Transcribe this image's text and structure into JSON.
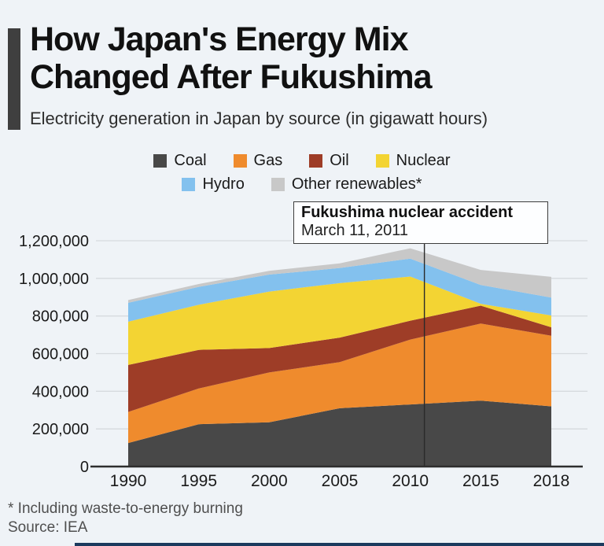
{
  "header": {
    "title_line1": "How Japan's Energy Mix",
    "title_line2": "Changed After Fukushima",
    "subtitle": "Electricity generation in Japan by source (in gigawatt hours)"
  },
  "annotation": {
    "title": "Fukushima nuclear accident",
    "date": "March 11, 2011",
    "year": 2011
  },
  "footer": {
    "footnote": "* Including waste-to-energy burning",
    "source": "Source: IEA"
  },
  "colors": {
    "background": "#eff3f7",
    "accent_bar": "#3f3f3f",
    "grid": "#d6dade",
    "axis": "#2e2e2e",
    "annotation_line": "#2a2a2a",
    "tick_text": "#1a1a1a",
    "bottom_bar": "#1b3a5e"
  },
  "chart_data": {
    "type": "area",
    "stacked": true,
    "title": "",
    "xlabel": "",
    "ylabel": "",
    "x": [
      1990,
      1995,
      2000,
      2005,
      2010,
      2015,
      2018
    ],
    "x_tick_labels": [
      "1990",
      "1995",
      "2000",
      "2005",
      "2010",
      "2015",
      "2018"
    ],
    "y_ticks": [
      0,
      200000,
      400000,
      600000,
      800000,
      1000000,
      1200000
    ],
    "ylim": [
      0,
      1200000
    ],
    "grid": true,
    "legend_position": "top",
    "series": [
      {
        "name": "Coal",
        "color": "#484848",
        "values": [
          125000,
          225000,
          235000,
          310000,
          330000,
          350000,
          320000
        ]
      },
      {
        "name": "Gas",
        "color": "#ef8b2d",
        "values": [
          165000,
          190000,
          265000,
          245000,
          345000,
          410000,
          375000
        ]
      },
      {
        "name": "Oil",
        "color": "#9e3d27",
        "values": [
          250000,
          205000,
          130000,
          130000,
          100000,
          95000,
          45000
        ]
      },
      {
        "name": "Nuclear",
        "color": "#f3d433",
        "values": [
          230000,
          240000,
          300000,
          290000,
          235000,
          10000,
          63000
        ]
      },
      {
        "name": "Hydro",
        "color": "#83c1ee",
        "values": [
          100000,
          95000,
          90000,
          80000,
          95000,
          100000,
          95000
        ]
      },
      {
        "name": "Other renewables*",
        "color": "#c8c8c8",
        "values": [
          15000,
          15000,
          20000,
          25000,
          55000,
          80000,
          110000
        ]
      }
    ]
  }
}
